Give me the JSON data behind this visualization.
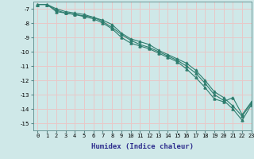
{
  "xlabel": "Humidex (Indice chaleur)",
  "ylabel": "",
  "bg_color": "#cfe8e8",
  "grid_color": "#e8c8c8",
  "line_color": "#2e7d6e",
  "xlim": [
    -0.5,
    23
  ],
  "ylim": [
    -15.5,
    -6.5
  ],
  "yticks": [
    -7,
    -8,
    -9,
    -10,
    -11,
    -12,
    -13,
    -14,
    -15
  ],
  "xticks": [
    0,
    1,
    2,
    3,
    4,
    5,
    6,
    7,
    8,
    9,
    10,
    11,
    12,
    13,
    14,
    15,
    16,
    17,
    18,
    19,
    20,
    21,
    22,
    23
  ],
  "series": [
    [
      -6.7,
      -6.7,
      -7.2,
      -7.3,
      -7.4,
      -7.5,
      -7.6,
      -7.8,
      -8.1,
      -8.7,
      -9.1,
      -9.3,
      -9.5,
      -9.9,
      -10.2,
      -10.5,
      -10.8,
      -11.3,
      -12.0,
      -12.8,
      -13.2,
      -13.8,
      -14.5,
      -13.6
    ],
    [
      -6.7,
      -6.7,
      -7.0,
      -7.2,
      -7.3,
      -7.4,
      -7.6,
      -7.9,
      -8.3,
      -8.8,
      -9.2,
      -9.5,
      -9.7,
      -10.0,
      -10.3,
      -10.6,
      -11.0,
      -11.5,
      -12.2,
      -13.0,
      -13.4,
      -14.0,
      -14.8,
      -13.7
    ],
    [
      -6.7,
      -6.7,
      -7.1,
      -7.3,
      -7.4,
      -7.55,
      -7.7,
      -8.0,
      -8.4,
      -9.0,
      -9.4,
      -9.6,
      -9.8,
      -10.1,
      -10.4,
      -10.7,
      -11.2,
      -11.8,
      -12.5,
      -13.3,
      -13.5,
      -13.2,
      -14.4,
      -13.5
    ]
  ],
  "xlabel_color": "#2e2e8e",
  "xlabel_fontsize": 6.5,
  "tick_fontsize": 5.0,
  "ylabel_fontsize": 6.0
}
